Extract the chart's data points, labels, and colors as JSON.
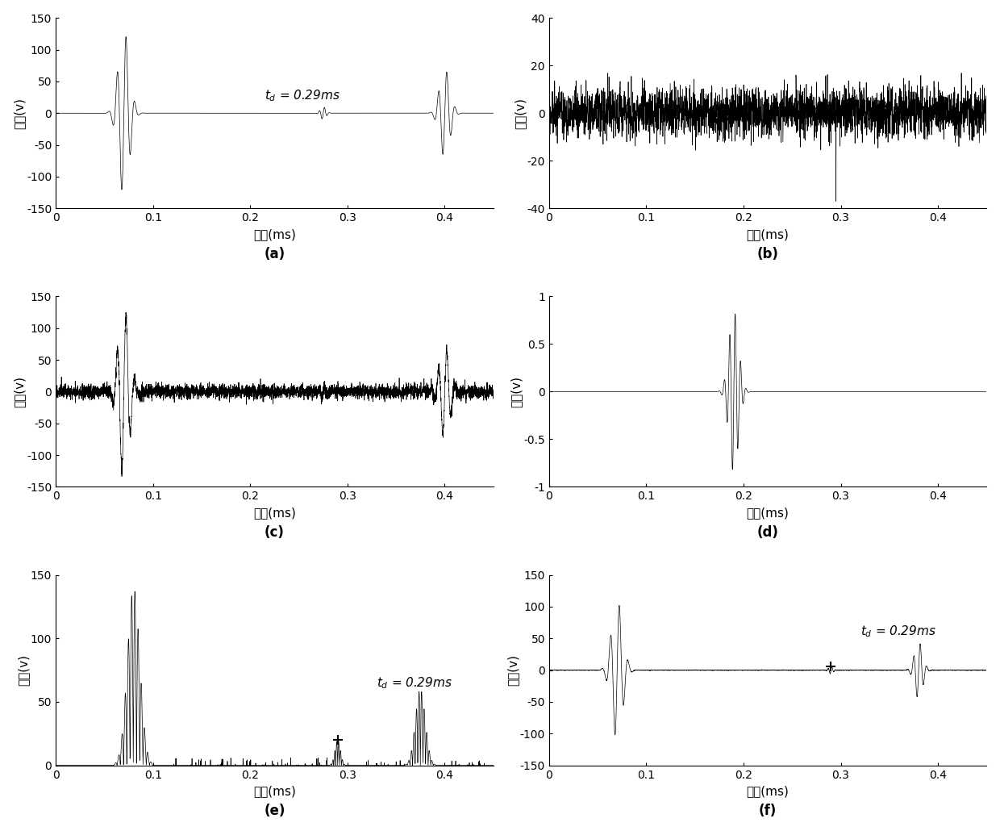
{
  "n_points": 4500,
  "t_max": 0.45,
  "ylim_a": [
    -150,
    150
  ],
  "ylim_b": [
    -40,
    40
  ],
  "ylim_c": [
    -150,
    150
  ],
  "ylim_d": [
    -1,
    1
  ],
  "ylim_e": [
    0,
    150
  ],
  "ylim_f": [
    -150,
    150
  ],
  "yticks_a": [
    -150,
    -100,
    -50,
    0,
    50,
    100,
    150
  ],
  "yticks_b": [
    -40,
    -20,
    0,
    20,
    40
  ],
  "yticks_c": [
    -150,
    -100,
    -50,
    0,
    50,
    100,
    150
  ],
  "yticks_d": [
    -1,
    -0.5,
    0,
    0.5,
    1
  ],
  "yticks_e": [
    0,
    50,
    100,
    150
  ],
  "yticks_f": [
    -150,
    -100,
    -50,
    0,
    50,
    100,
    150
  ],
  "xticks": [
    0,
    0.1,
    0.2,
    0.3,
    0.4
  ],
  "xlabel": "时间(ms)",
  "ylabel": "幅値(v)",
  "label_a": "(a)",
  "label_b": "(b)",
  "label_c": "(c)",
  "label_d": "(d)",
  "label_e": "(e)",
  "label_f": "(f)",
  "annotation_td": "$t_d$ = 0.29ms",
  "bg_color": "#ffffff",
  "line_color": "#000000"
}
